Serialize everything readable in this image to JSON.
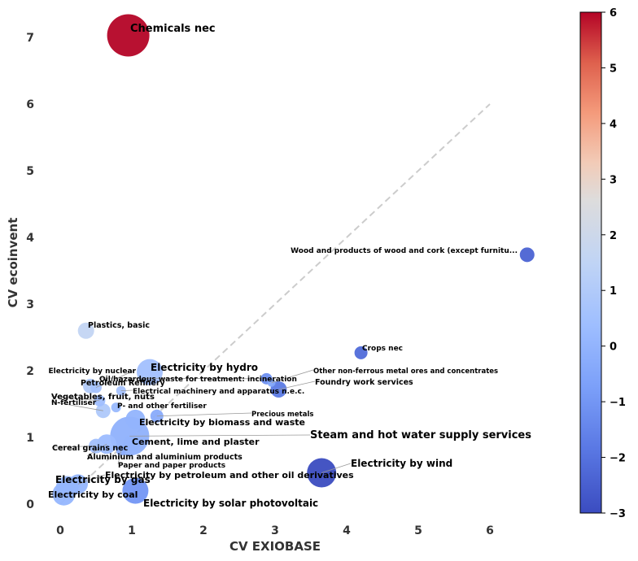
{
  "chart_data": {
    "type": "scatter",
    "xlabel": "CV EXIOBASE",
    "ylabel": "CV ecoinvent",
    "xlim": [
      -0.3,
      6.8
    ],
    "ylim": [
      -0.15,
      7.35
    ],
    "x_ticks": [
      "0",
      "1",
      "2",
      "3",
      "4",
      "5",
      "6"
    ],
    "y_ticks": [
      "0",
      "1",
      "2",
      "3",
      "4",
      "5",
      "6",
      "7"
    ],
    "reference_line": {
      "from": [
        0,
        0
      ],
      "to": [
        6,
        6
      ],
      "style": "dashed",
      "color": "#cccccc"
    },
    "colorbar": {
      "min": -3,
      "max": 6,
      "ticks": [
        "−3",
        "−2",
        "−1",
        "0",
        "1",
        "2",
        "3",
        "4",
        "5",
        "6"
      ],
      "colormap": "coolwarm"
    },
    "points": [
      {
        "label": "Chemicals nec",
        "x": 0.95,
        "y": 7.03,
        "c": 6.0,
        "size": 26,
        "label_size": 13
      },
      {
        "label": "Wood and products of wood and cork (except furnitu...",
        "x": 6.52,
        "y": 3.74,
        "c": -2.4,
        "size": 9,
        "label_size": 9
      },
      {
        "label": "Plastics, basic",
        "x": 0.36,
        "y": 2.6,
        "c": 1.6,
        "size": 10,
        "label_size": 9.5
      },
      {
        "label": "Crops nec",
        "x": 4.2,
        "y": 2.27,
        "c": -2.2,
        "size": 8,
        "label_size": 9
      },
      {
        "label": "Electricity by nuclear",
        "x": 0.5,
        "y": 1.75,
        "c": 0.6,
        "size": 7,
        "label_size": 9
      },
      {
        "label": "Electricity by hydro",
        "x": 1.25,
        "y": 1.98,
        "c": 0.5,
        "size": 16,
        "label_size": 12
      },
      {
        "label": "Oil/hazardous waste for treatment: incineration",
        "x": 2.88,
        "y": 1.88,
        "c": -1.2,
        "size": 7,
        "label_size": 9
      },
      {
        "label": "Other non-ferrous metal ores and concentrates",
        "x": 2.95,
        "y": 1.82,
        "c": -0.5,
        "size": 5,
        "label_size": 8.5
      },
      {
        "label": "Petroleum Refinery",
        "x": 0.42,
        "y": 1.77,
        "c": 1.0,
        "size": 9,
        "label_size": 9.5
      },
      {
        "label": "Foundry work services",
        "x": 3.05,
        "y": 1.72,
        "c": -1.8,
        "size": 10,
        "label_size": 9.5
      },
      {
        "label": "Electrical machinery and apparatus n.e.c.",
        "x": 0.85,
        "y": 1.7,
        "c": 0.6,
        "size": 6,
        "label_size": 9
      },
      {
        "label": "Vegetables, fruit, nuts",
        "x": 0.55,
        "y": 1.55,
        "c": 0.4,
        "size": 7,
        "label_size": 10
      },
      {
        "label": "N-fertiliser",
        "x": 0.6,
        "y": 1.4,
        "c": 0.9,
        "size": 9,
        "label_size": 9
      },
      {
        "label": "P- and other fertiliser",
        "x": 0.78,
        "y": 1.45,
        "c": 0.2,
        "size": 6,
        "label_size": 9
      },
      {
        "label": "Precious metals",
        "x": 1.35,
        "y": 1.32,
        "c": -0.3,
        "size": 8,
        "label_size": 8.5
      },
      {
        "label": "Electricity by biomass and waste",
        "x": 1.05,
        "y": 1.27,
        "c": 0.0,
        "size": 12,
        "label_size": 11
      },
      {
        "label": "Steam and hot water supply services",
        "x": 0.97,
        "y": 1.02,
        "c": -0.1,
        "size": 24,
        "label_size": 13
      },
      {
        "label": "Cement, lime and plaster",
        "x": 1.0,
        "y": 0.92,
        "c": 0.0,
        "size": 10,
        "label_size": 11
      },
      {
        "label": "Cereal grains nec",
        "x": 0.5,
        "y": 0.87,
        "c": 0.5,
        "size": 9,
        "label_size": 9.5
      },
      {
        "label": "Aluminium and aluminium products",
        "x": 0.65,
        "y": 0.9,
        "c": 0.3,
        "size": 12,
        "label_size": 9.5
      },
      {
        "label": "Paper and paper products",
        "x": 0.85,
        "y": 0.8,
        "c": -0.2,
        "size": 6,
        "label_size": 9
      },
      {
        "label": "Electricity by wind",
        "x": 3.65,
        "y": 0.47,
        "c": -3.0,
        "size": 18,
        "label_size": 12
      },
      {
        "label": "Electricity by petroleum and other oil derivatives",
        "x": 0.25,
        "y": 0.3,
        "c": 0.1,
        "size": 12,
        "label_size": 11
      },
      {
        "label": "Electricity by gas",
        "x": 0.1,
        "y": 0.25,
        "c": 0.2,
        "size": 14,
        "label_size": 12
      },
      {
        "label": "Electricity by coal",
        "x": 0.05,
        "y": 0.15,
        "c": 0.1,
        "size": 14,
        "label_size": 11
      },
      {
        "label": "Electricity by solar photovoltaic",
        "x": 1.05,
        "y": 0.2,
        "c": -1.0,
        "size": 16,
        "label_size": 12
      }
    ]
  }
}
